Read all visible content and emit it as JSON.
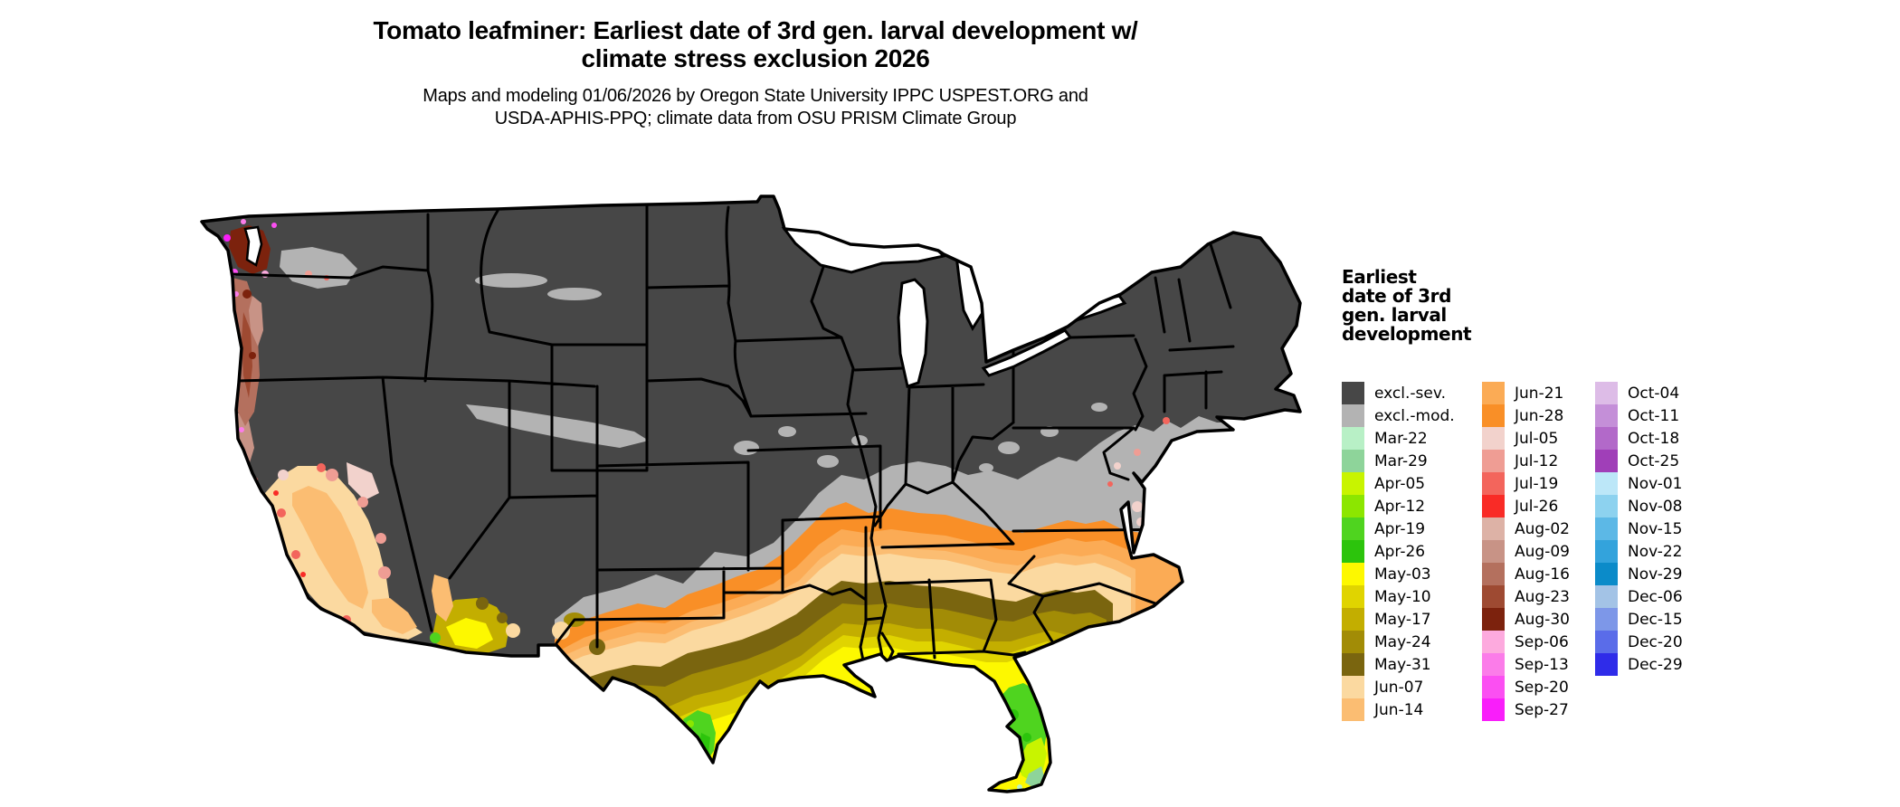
{
  "title": {
    "line1": "Tomato leafminer: Earliest date of 3rd gen. larval development w/",
    "line2": "climate stress exclusion 2026"
  },
  "subtitle": {
    "line1": "Maps and modeling 01/06/2026 by Oregon State University IPPC USPEST.ORG and",
    "line2": "USDA-APHIS-PPQ; climate data from OSU PRISM Climate Group"
  },
  "legend": {
    "title_lines": [
      "Earliest",
      "date of 3rd",
      "gen. larval",
      "development"
    ],
    "columns": [
      [
        {
          "label": "excl.-sev.",
          "color": "#474747"
        },
        {
          "label": "excl.-mod.",
          "color": "#b3b3b3"
        },
        {
          "label": "Mar-22",
          "color": "#b8f0c6"
        },
        {
          "label": "Mar-29",
          "color": "#8ed49a"
        },
        {
          "label": "Apr-05",
          "color": "#c8f400"
        },
        {
          "label": "Apr-12",
          "color": "#8ce600"
        },
        {
          "label": "Apr-19",
          "color": "#4fd41f"
        },
        {
          "label": "Apr-26",
          "color": "#2cc40c"
        },
        {
          "label": "May-03",
          "color": "#fdf800"
        },
        {
          "label": "May-10",
          "color": "#e0d400"
        },
        {
          "label": "May-17",
          "color": "#c3ae00"
        },
        {
          "label": "May-24",
          "color": "#a28c06"
        },
        {
          "label": "May-31",
          "color": "#7a650f"
        },
        {
          "label": "Jun-07",
          "color": "#fbd9a0"
        },
        {
          "label": "Jun-14",
          "color": "#fbbd72"
        }
      ],
      [
        {
          "label": "Jun-21",
          "color": "#fbab55"
        },
        {
          "label": "Jun-28",
          "color": "#f98f27"
        },
        {
          "label": "Jul-05",
          "color": "#f2d2cc"
        },
        {
          "label": "Jul-12",
          "color": "#ef9d94"
        },
        {
          "label": "Jul-19",
          "color": "#f3655c"
        },
        {
          "label": "Jul-26",
          "color": "#f92b26"
        },
        {
          "label": "Aug-02",
          "color": "#ddb2a6"
        },
        {
          "label": "Aug-09",
          "color": "#c89386"
        },
        {
          "label": "Aug-16",
          "color": "#b4705e"
        },
        {
          "label": "Aug-23",
          "color": "#9e4a32"
        },
        {
          "label": "Aug-30",
          "color": "#7c220d"
        },
        {
          "label": "Sep-06",
          "color": "#fdaade"
        },
        {
          "label": "Sep-13",
          "color": "#fb7ce9"
        },
        {
          "label": "Sep-20",
          "color": "#fb4ff2"
        },
        {
          "label": "Sep-27",
          "color": "#f91efa"
        }
      ],
      [
        {
          "label": "Oct-04",
          "color": "#ddbce7"
        },
        {
          "label": "Oct-11",
          "color": "#c48fd8"
        },
        {
          "label": "Oct-18",
          "color": "#b269c9"
        },
        {
          "label": "Oct-25",
          "color": "#a03fb8"
        },
        {
          "label": "Nov-01",
          "color": "#bce7f8"
        },
        {
          "label": "Nov-08",
          "color": "#8dd2ef"
        },
        {
          "label": "Nov-15",
          "color": "#5cb8e6"
        },
        {
          "label": "Nov-22",
          "color": "#33a3dc"
        },
        {
          "label": "Nov-29",
          "color": "#0b8bc9"
        },
        {
          "label": "Dec-06",
          "color": "#a3c3e6"
        },
        {
          "label": "Dec-15",
          "color": "#7d97e8"
        },
        {
          "label": "Dec-20",
          "color": "#5a6ce9"
        },
        {
          "label": "Dec-29",
          "color": "#2f2ce9"
        }
      ]
    ]
  },
  "map": {
    "region": "Contiguous United States",
    "palette": {
      "excl_sev": "#474747",
      "excl_mod": "#b3b3b3",
      "mar22": "#b8f0c6",
      "mar29": "#8ed49a",
      "apr05": "#c8f400",
      "apr12": "#8ce600",
      "apr19": "#4fd41f",
      "apr26": "#2cc40c",
      "may03": "#fdf800",
      "may10": "#e0d400",
      "may17": "#c3ae00",
      "may24": "#a28c06",
      "may31": "#7a650f",
      "jun07": "#fbd9a0",
      "jun14": "#fbbd72",
      "jun21": "#fbab55",
      "jun28": "#f98f27",
      "jul05": "#f2d2cc",
      "jul12": "#ef9d94",
      "jul19": "#f3655c",
      "jul26": "#f92b26",
      "aug02": "#ddb2a6",
      "aug09": "#c89386",
      "aug16": "#b4705e",
      "aug23": "#9e4a32",
      "aug30": "#7c220d",
      "sep06": "#fdaade",
      "sep13": "#fb7ce9",
      "sep20": "#fb4ff2",
      "sep27": "#f91efa",
      "white": "#ffffff",
      "border": "#000000"
    }
  }
}
